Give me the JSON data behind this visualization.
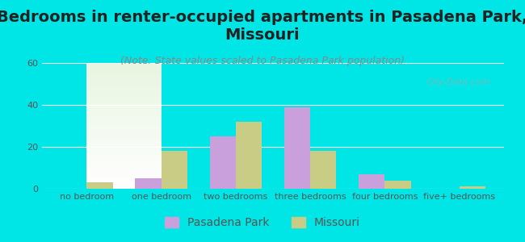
{
  "title": "Bedrooms in renter-occupied apartments in Pasadena Park,\nMissouri",
  "subtitle": "(Note: State values scaled to Pasadena Park population)",
  "categories": [
    "no bedroom",
    "one bedroom",
    "two bedrooms",
    "three bedrooms",
    "four bedrooms",
    "five+ bedrooms"
  ],
  "pasadena_values": [
    0,
    5,
    25,
    39,
    7,
    0
  ],
  "missouri_values": [
    3,
    18,
    32,
    18,
    4,
    1
  ],
  "pasadena_color": "#c9a0dc",
  "missouri_color": "#c8cc84",
  "bar_width": 0.35,
  "ylim": [
    0,
    60
  ],
  "yticks": [
    0,
    20,
    40,
    60
  ],
  "background_color": "#00e5e5",
  "plot_bg_top": "#e8f5e0",
  "plot_bg_bottom": "#ffffff",
  "title_fontsize": 14,
  "subtitle_fontsize": 9,
  "tick_fontsize": 8,
  "legend_fontsize": 10,
  "watermark": "City-Data.com"
}
